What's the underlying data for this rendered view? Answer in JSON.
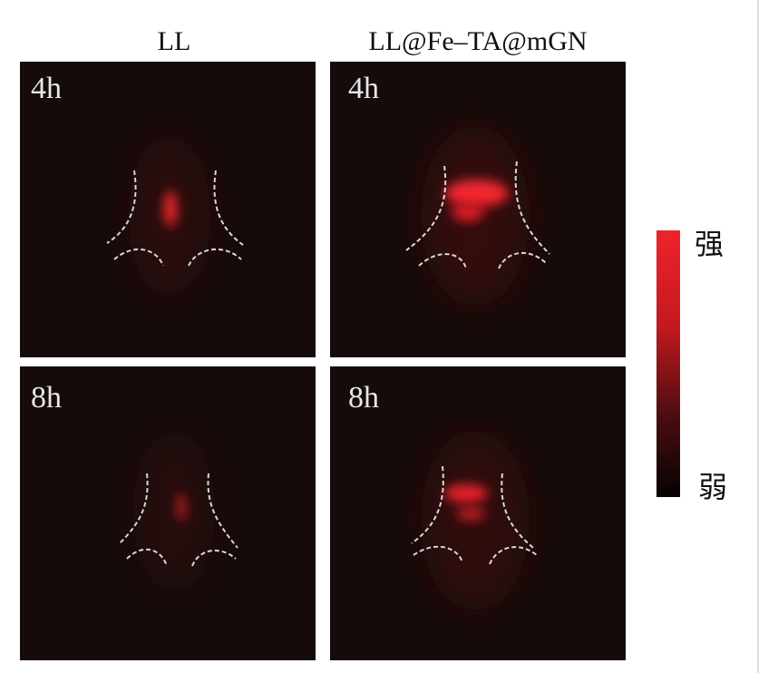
{
  "column_headers": [
    "LL",
    "LL@Fe–TA@mGN"
  ],
  "panels": [
    {
      "label": "4h"
    },
    {
      "label": "4h"
    },
    {
      "label": "8h"
    },
    {
      "label": "8h"
    }
  ],
  "colorbar": {
    "high": "强",
    "low": "弱"
  }
}
